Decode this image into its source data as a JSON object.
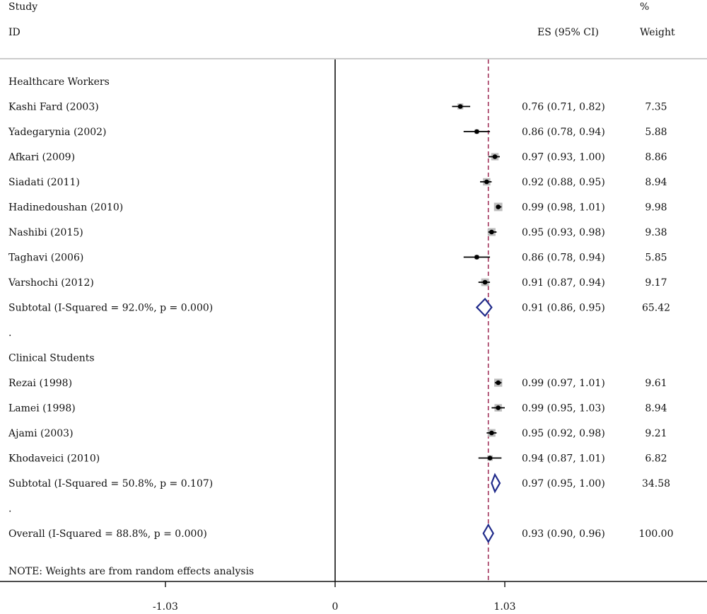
{
  "header": {
    "study": "Study",
    "id": "ID",
    "es_ci": "ES (95% CI)",
    "pct": "%",
    "weight": "Weight"
  },
  "note": "NOTE: Weights are from random effects analysis",
  "colors": {
    "diamond": "#1f2a8a",
    "reference_line": "#a0325a",
    "box": "#bdbdbd",
    "axis": "#111111"
  },
  "chart_data": {
    "type": "forest",
    "overall_line": 0.93,
    "null_line": 0,
    "x_ticks": [
      -1.03,
      0,
      1.03
    ],
    "x_tick_labels": [
      "-1.03",
      "0",
      "1.03"
    ],
    "rows": [
      {
        "kind": "group",
        "label": "Healthcare Workers"
      },
      {
        "kind": "study",
        "label": "Kashi Fard (2003)",
        "es": 0.76,
        "lo": 0.71,
        "hi": 0.82,
        "ci_text": "0.76 (0.71, 0.82)",
        "weight": "7.35"
      },
      {
        "kind": "study",
        "label": "Yadegarynia (2002)",
        "es": 0.86,
        "lo": 0.78,
        "hi": 0.94,
        "ci_text": "0.86 (0.78, 0.94)",
        "weight": "5.88"
      },
      {
        "kind": "study",
        "label": "Afkari (2009)",
        "es": 0.97,
        "lo": 0.93,
        "hi": 1.0,
        "ci_text": "0.97 (0.93, 1.00)",
        "weight": "8.86"
      },
      {
        "kind": "study",
        "label": "Siadati (2011)",
        "es": 0.92,
        "lo": 0.88,
        "hi": 0.95,
        "ci_text": "0.92 (0.88, 0.95)",
        "weight": "8.94"
      },
      {
        "kind": "study",
        "label": "Hadinedoushan (2010)",
        "es": 0.99,
        "lo": 0.98,
        "hi": 1.01,
        "ci_text": "0.99 (0.98, 1.01)",
        "weight": "9.98"
      },
      {
        "kind": "study",
        "label": "Nashibi (2015)",
        "es": 0.95,
        "lo": 0.93,
        "hi": 0.98,
        "ci_text": "0.95 (0.93, 0.98)",
        "weight": "9.38"
      },
      {
        "kind": "study",
        "label": "Taghavi (2006)",
        "es": 0.86,
        "lo": 0.78,
        "hi": 0.94,
        "ci_text": "0.86 (0.78, 0.94)",
        "weight": "5.85"
      },
      {
        "kind": "study",
        "label": "Varshochi (2012)",
        "es": 0.91,
        "lo": 0.87,
        "hi": 0.94,
        "ci_text": "0.91 (0.87, 0.94)",
        "weight": "9.17"
      },
      {
        "kind": "subtotal",
        "label": "Subtotal  (I-Squared = 92.0%, p = 0.000)",
        "es": 0.91,
        "lo": 0.86,
        "hi": 0.95,
        "ci_text": "0.91 (0.86, 0.95)",
        "weight": "65.42"
      },
      {
        "kind": "spacer",
        "label": "."
      },
      {
        "kind": "group",
        "label": "Clinical Students"
      },
      {
        "kind": "study",
        "label": "Rezai (1998)",
        "es": 0.99,
        "lo": 0.97,
        "hi": 1.01,
        "ci_text": "0.99 (0.97, 1.01)",
        "weight": "9.61"
      },
      {
        "kind": "study",
        "label": "Lamei (1998)",
        "es": 0.99,
        "lo": 0.95,
        "hi": 1.03,
        "ci_text": "0.99 (0.95, 1.03)",
        "weight": "8.94"
      },
      {
        "kind": "study",
        "label": "Ajami (2003)",
        "es": 0.95,
        "lo": 0.92,
        "hi": 0.98,
        "ci_text": "0.95 (0.92, 0.98)",
        "weight": "9.21"
      },
      {
        "kind": "study",
        "label": "Khodaveici (2010)",
        "es": 0.94,
        "lo": 0.87,
        "hi": 1.01,
        "ci_text": "0.94 (0.87, 1.01)",
        "weight": "6.82"
      },
      {
        "kind": "subtotal",
        "label": "Subtotal  (I-Squared = 50.8%, p = 0.107)",
        "es": 0.97,
        "lo": 0.95,
        "hi": 1.0,
        "ci_text": "0.97 (0.95, 1.00)",
        "weight": "34.58"
      },
      {
        "kind": "spacer",
        "label": "."
      },
      {
        "kind": "overall",
        "label": "Overall  (I-Squared = 88.8%, p = 0.000)",
        "es": 0.93,
        "lo": 0.9,
        "hi": 0.96,
        "ci_text": "0.93 (0.90, 0.96)",
        "weight": "100.00"
      }
    ]
  }
}
